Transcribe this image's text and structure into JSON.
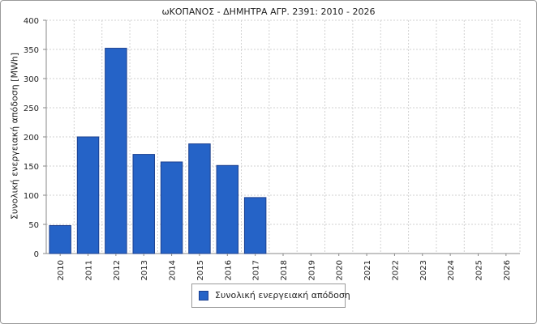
{
  "chart_data": {
    "type": "bar",
    "title": "ωΚΟΠΑΝΟΣ - ΔΗΜΗΤΡΑ ΑΓΡ. 2391: 2010 - 2026",
    "ylabel": "Συνολική ενεργειακή απόδοση  [MWh]",
    "xlabel": "",
    "ylim": [
      0,
      400
    ],
    "yticks": [
      0,
      50,
      100,
      150,
      200,
      250,
      300,
      350,
      400
    ],
    "categories": [
      "2010",
      "2011",
      "2012",
      "2013",
      "2014",
      "2015",
      "2016",
      "2017",
      "2018",
      "2019",
      "2020",
      "2021",
      "2022",
      "2023",
      "2024",
      "2025",
      "2026"
    ],
    "series": [
      {
        "name": "Συνολική ενεργειακή απόδοση",
        "color": "#2563c7",
        "values": [
          48,
          200,
          352,
          170,
          157,
          188,
          151,
          96,
          0,
          0,
          0,
          0,
          0,
          0,
          0,
          0,
          0
        ]
      }
    ],
    "grid": true,
    "legend_position": "bottom-center"
  }
}
